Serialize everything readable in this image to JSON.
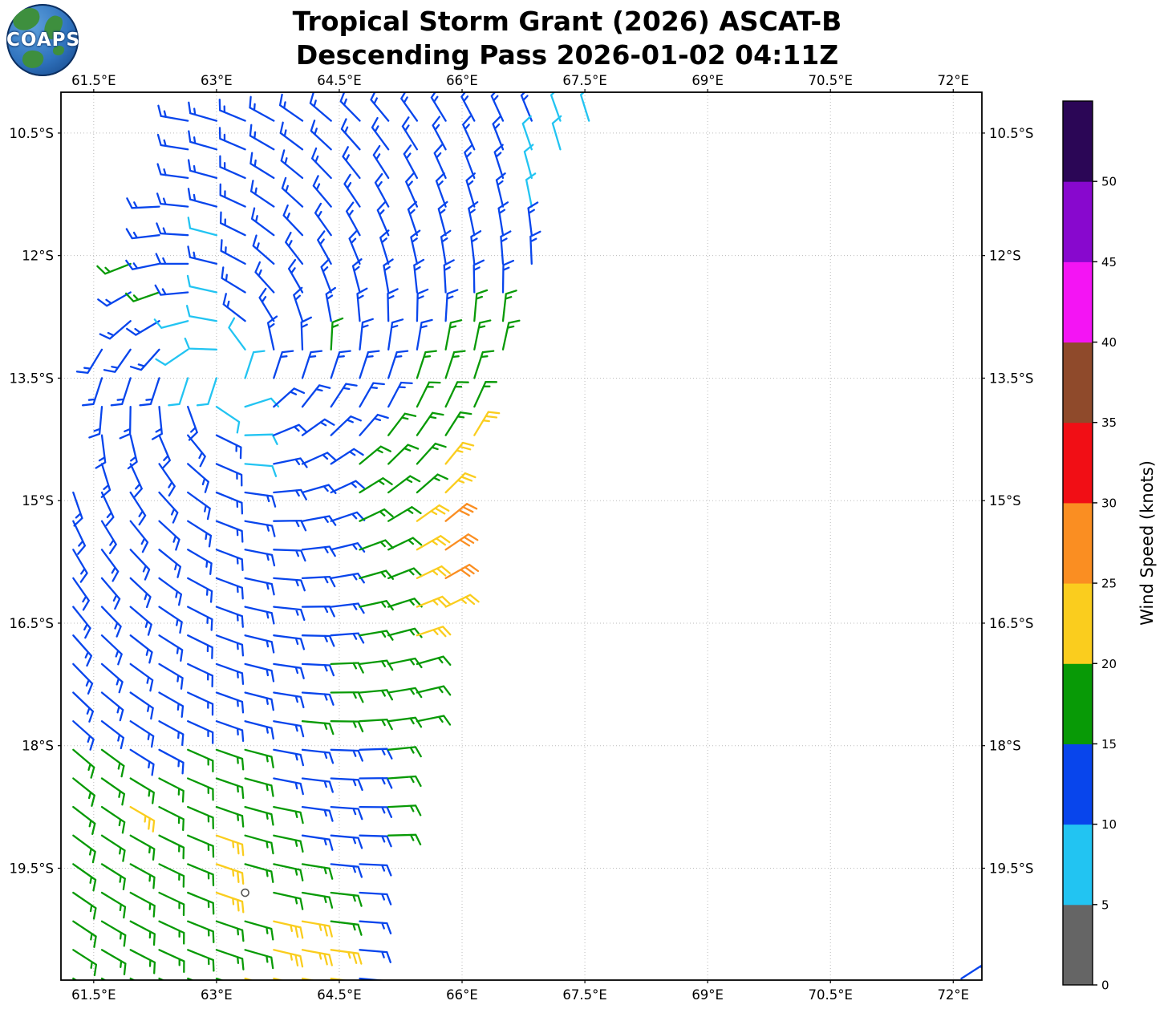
{
  "header": {
    "title_line1": "Tropical Storm Grant (2026) ASCAT-B",
    "title_line2": "Descending Pass 2026-01-02 04:11Z",
    "logo_text": "COAPS"
  },
  "chart_data": {
    "type": "wind_barb_map",
    "title": "Tropical Storm Grant (2026) ASCAT-B Descending Pass 2026-01-02 04:11Z",
    "satellite": "ASCAT-B",
    "pass_type": "Descending",
    "datetime_utc": "2026-01-02 04:11Z",
    "x_axis": {
      "tick_values": [
        61.5,
        63,
        64.5,
        66,
        67.5,
        69,
        70.5,
        72
      ],
      "tick_labels": [
        "61.5°E",
        "63°E",
        "64.5°E",
        "66°E",
        "67.5°E",
        "69°E",
        "70.5°E",
        "72°E"
      ],
      "range_lon_east": [
        61.1,
        72.35
      ]
    },
    "y_axis": {
      "tick_values": [
        10.5,
        12,
        13.5,
        15,
        16.5,
        18,
        19.5
      ],
      "tick_labels": [
        "10.5°S",
        "12°S",
        "13.5°S",
        "15°S",
        "16.5°S",
        "18°S",
        "19.5°S"
      ],
      "range_lat_south": [
        10.0,
        20.87
      ]
    },
    "grid": {
      "style": "dotted",
      "color": "#bbbbbb"
    },
    "colorbar": {
      "label": "Wind Speed (knots)",
      "tick_values": [
        0,
        5,
        10,
        15,
        20,
        25,
        30,
        35,
        40,
        45,
        50
      ],
      "levels": [
        {
          "from": 0,
          "to": 5,
          "color": "#656565"
        },
        {
          "from": 5,
          "to": 10,
          "color": "#22c4f2"
        },
        {
          "from": 10,
          "to": 15,
          "color": "#0845ec"
        },
        {
          "from": 15,
          "to": 20,
          "color": "#089a06"
        },
        {
          "from": 20,
          "to": 25,
          "color": "#facd1e"
        },
        {
          "from": 25,
          "to": 30,
          "color": "#fa8e22"
        },
        {
          "from": 30,
          "to": 35,
          "color": "#f10e15"
        },
        {
          "from": 35,
          "to": 40,
          "color": "#8f4a2b"
        },
        {
          "from": 40,
          "to": 45,
          "color": "#f414f4"
        },
        {
          "from": 45,
          "to": 50,
          "color": "#8808ce"
        },
        {
          "from": 50,
          "to": 55,
          "color": "#2b0656"
        }
      ]
    },
    "wind_field": {
      "comment": "Grid of wind-barb cells sampled from the swath. lon = lon0 + col*dlon (deg E), lat = lat0 + row*dlat (deg S). Letters: .=no data, c=5-10kt, b=10-15kt, g=15-20kt, y=20-25kt, o=25-30kt, G=calm(<5kt, gray circle).",
      "lon0": 61.25,
      "dlon": 0.35,
      "lat0": 10.35,
      "dlat": 0.35,
      "categories": {
        "c": {
          "speed": 8,
          "color": "#22c4f2",
          "range": "5-10 kt"
        },
        "b": {
          "speed": 13,
          "color": "#0845ec",
          "range": "10-15 kt"
        },
        "g": {
          "speed": 17,
          "color": "#089a06",
          "range": "15-20 kt"
        },
        "y": {
          "speed": 23,
          "color": "#facd1e",
          "range": "20-25 kt"
        },
        "o": {
          "speed": 28,
          "color": "#fa8e22",
          "range": "25-30 kt"
        },
        "G": {
          "speed": 0,
          "color": "#555555",
          "range": "0-5 kt calm"
        }
      },
      "rows": [
        "....bbbbbbbbbbbbbcc..............",
        "....bbbbbbbbbbbbcc...............",
        "....bbbbbbbbbbbbc................",
        "...bbbbbbbbbbbbbc................",
        "...bbcbbbbbbbbbbb................",
        "..gbbbbbbbbbbbbbb................",
        "..bgbcbbbbbbbbbb.................",
        "..bbccbbbbbbbbgg.................",
        ".bbbcccbbgbbbggg.................",
        ".bbbcccbbbbbggg..................",
        ".bbbbccbbbbbggg..................",
        ".bbbbbcbbbbgggy..................",
        ".bbbbbcbbbgggy...................",
        "bbbbbbbbbbgggy...................",
        "bbbbbbbbbbggyo...................",
        "bbbbbbbbbbggyo...................",
        "bbbbbbbbbbggyo...................",
        "bbbbbbbbbbggyy...................",
        "bbbbbbbbbbggy....................",
        "bbbbbbbbbgggg....................",
        "bbbbbbbbbgggg....................",
        "bbbbbbbbggggg....................",
        "ggbbgggbbbbg.....................",
        "gggggggbbbbg.....................",
        "ggygggggbbbg.....................",
        "gggggyggbbbg.....................",
        "gggggygggbb......................",
        "gggggyGgggb......................",
        "gggggggyygb.....................g",
        "gggggggyyyb.....................b",
        "ggggggyyyyb....................bb"
      ]
    },
    "direction_model": {
      "type": "cyclonic_vortex_southern_hemisphere",
      "rotation": "clockwise",
      "center_lon_east": 63.1,
      "center_lat_south": 13.5,
      "inflow_deg": 18
    },
    "barb_convention": {
      "staff_points": "upwind",
      "full_barb_kt": 10,
      "half_barb_kt": 5
    }
  }
}
